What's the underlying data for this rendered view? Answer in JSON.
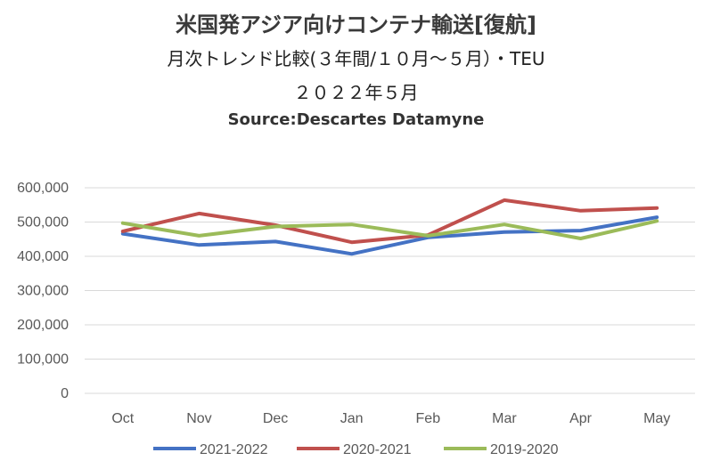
{
  "titles": {
    "main": "米国発アジア向けコンテナ輸送[復航]",
    "sub": "月次トレンド比較(３年間/１０月～５月）・TEU",
    "date": "２０２２年５月",
    "source": "Source:Descartes Datamyne"
  },
  "chart_data": {
    "type": "line",
    "categories": [
      "Oct",
      "Nov",
      "Dec",
      "Jan",
      "Feb",
      "Mar",
      "Apr",
      "May"
    ],
    "ylim": [
      0,
      600000
    ],
    "yticks": [
      0,
      100000,
      200000,
      300000,
      400000,
      500000,
      600000
    ],
    "ytick_labels": [
      "0",
      "100,000",
      "200,000",
      "300,000",
      "400,000",
      "500,000",
      "600,000"
    ],
    "grid": true,
    "legend_position": "bottom",
    "series": [
      {
        "name": "2021-2022",
        "color": "#4472C4",
        "values": [
          466000,
          433000,
          443000,
          407000,
          455000,
          471000,
          475000,
          514000
        ]
      },
      {
        "name": "2020-2021",
        "color": "#C0504D",
        "values": [
          473000,
          525000,
          491000,
          441000,
          462000,
          564000,
          533000,
          541000
        ]
      },
      {
        "name": "2019-2020",
        "color": "#9BBB59",
        "values": [
          497000,
          460000,
          487000,
          493000,
          460000,
          493000,
          452000,
          503000
        ]
      }
    ]
  }
}
